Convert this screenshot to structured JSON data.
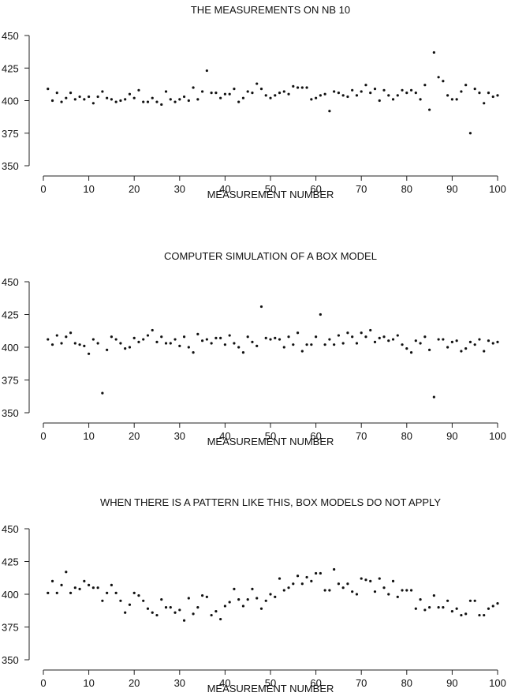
{
  "chart_data": [
    {
      "type": "scatter",
      "title": "THE MEASUREMENTS ON NB 10",
      "xlabel": "MEASUREMENT NUMBER",
      "ylabel": "",
      "xlim": [
        0,
        100
      ],
      "ylim": [
        350,
        450
      ],
      "xticks": [
        0,
        10,
        20,
        30,
        40,
        50,
        60,
        70,
        80,
        90,
        100
      ],
      "yticks": [
        350,
        375,
        400,
        425,
        450
      ],
      "grid": false,
      "x": [
        1,
        2,
        3,
        4,
        5,
        6,
        7,
        8,
        9,
        10,
        11,
        12,
        13,
        14,
        15,
        16,
        17,
        18,
        19,
        20,
        21,
        22,
        23,
        24,
        25,
        26,
        27,
        28,
        29,
        30,
        31,
        32,
        33,
        34,
        35,
        36,
        37,
        38,
        39,
        40,
        41,
        42,
        43,
        44,
        45,
        46,
        47,
        48,
        49,
        50,
        51,
        52,
        53,
        54,
        55,
        56,
        57,
        58,
        59,
        60,
        61,
        62,
        63,
        64,
        65,
        66,
        67,
        68,
        69,
        70,
        71,
        72,
        73,
        74,
        75,
        76,
        77,
        78,
        79,
        80,
        81,
        82,
        83,
        84,
        85,
        86,
        87,
        88,
        89,
        90,
        91,
        92,
        93,
        94,
        95,
        96,
        97,
        98,
        99,
        100
      ],
      "y": [
        409,
        400,
        406,
        399,
        402,
        406,
        401,
        403,
        401,
        403,
        398,
        403,
        407,
        402,
        401,
        399,
        400,
        401,
        405,
        402,
        408,
        399,
        399,
        402,
        399,
        397,
        407,
        401,
        399,
        401,
        403,
        400,
        410,
        401,
        407,
        423,
        406,
        406,
        402,
        405,
        405,
        409,
        399,
        402,
        407,
        406,
        413,
        409,
        404,
        402,
        404,
        406,
        407,
        405,
        411,
        410,
        410,
        410,
        401,
        402,
        404,
        405,
        392,
        407,
        406,
        404,
        403,
        408,
        404,
        407,
        412,
        406,
        409,
        400,
        408,
        404,
        401,
        404,
        408,
        406,
        408,
        406,
        401,
        412,
        393,
        437,
        418,
        415,
        404,
        401,
        401,
        407,
        412,
        375,
        409,
        406,
        398,
        406,
        403,
        404
      ]
    },
    {
      "type": "scatter",
      "title": "COMPUTER SIMULATION OF A BOX MODEL",
      "xlabel": "MEASUREMENT NUMBER",
      "ylabel": "",
      "xlim": [
        0,
        100
      ],
      "ylim": [
        350,
        450
      ],
      "xticks": [
        0,
        10,
        20,
        30,
        40,
        50,
        60,
        70,
        80,
        90,
        100
      ],
      "yticks": [
        350,
        375,
        400,
        425,
        450
      ],
      "grid": false,
      "x": [
        1,
        2,
        3,
        4,
        5,
        6,
        7,
        8,
        9,
        10,
        11,
        12,
        13,
        14,
        15,
        16,
        17,
        18,
        19,
        20,
        21,
        22,
        23,
        24,
        25,
        26,
        27,
        28,
        29,
        30,
        31,
        32,
        33,
        34,
        35,
        36,
        37,
        38,
        39,
        40,
        41,
        42,
        43,
        44,
        45,
        46,
        47,
        48,
        49,
        50,
        51,
        52,
        53,
        54,
        55,
        56,
        57,
        58,
        59,
        60,
        61,
        62,
        63,
        64,
        65,
        66,
        67,
        68,
        69,
        70,
        71,
        72,
        73,
        74,
        75,
        76,
        77,
        78,
        79,
        80,
        81,
        82,
        83,
        84,
        85,
        86,
        87,
        88,
        89,
        90,
        91,
        92,
        93,
        94,
        95,
        96,
        97,
        98,
        99,
        100
      ],
      "y": [
        406,
        402,
        409,
        403,
        408,
        411,
        403,
        402,
        401,
        395,
        406,
        403,
        365,
        398,
        408,
        406,
        403,
        399,
        400,
        407,
        404,
        406,
        409,
        413,
        404,
        408,
        403,
        403,
        406,
        401,
        408,
        400,
        396,
        410,
        405,
        406,
        403,
        407,
        407,
        402,
        409,
        403,
        400,
        396,
        408,
        404,
        401,
        431,
        407,
        406,
        407,
        406,
        400,
        408,
        402,
        411,
        397,
        402,
        402,
        408,
        425,
        402,
        406,
        402,
        409,
        403,
        411,
        408,
        403,
        411,
        408,
        413,
        404,
        407,
        408,
        405,
        406,
        409,
        402,
        399,
        396,
        405,
        403,
        408,
        398,
        362,
        406,
        406,
        400,
        404,
        405,
        397,
        399,
        404,
        402,
        406,
        397,
        405,
        403,
        404
      ]
    },
    {
      "type": "scatter",
      "title": "WHEN THERE IS A PATTERN LIKE THIS, BOX MODELS DO NOT APPLY",
      "xlabel": "MEASUREMENT NUMBER",
      "ylabel": "",
      "xlim": [
        0,
        100
      ],
      "ylim": [
        350,
        450
      ],
      "xticks": [
        0,
        10,
        20,
        30,
        40,
        50,
        60,
        70,
        80,
        90,
        100
      ],
      "yticks": [
        350,
        375,
        400,
        425,
        450
      ],
      "grid": false,
      "x": [
        1,
        2,
        3,
        4,
        5,
        6,
        7,
        8,
        9,
        10,
        11,
        12,
        13,
        14,
        15,
        16,
        17,
        18,
        19,
        20,
        21,
        22,
        23,
        24,
        25,
        26,
        27,
        28,
        29,
        30,
        31,
        32,
        33,
        34,
        35,
        36,
        37,
        38,
        39,
        40,
        41,
        42,
        43,
        44,
        45,
        46,
        47,
        48,
        49,
        50,
        51,
        52,
        53,
        54,
        55,
        56,
        57,
        58,
        59,
        60,
        61,
        62,
        63,
        64,
        65,
        66,
        67,
        68,
        69,
        70,
        71,
        72,
        73,
        74,
        75,
        76,
        77,
        78,
        79,
        80,
        81,
        82,
        83,
        84,
        85,
        86,
        87,
        88,
        89,
        90,
        91,
        92,
        93,
        94,
        95,
        96,
        97,
        98,
        99,
        100
      ],
      "y": [
        401,
        410,
        401,
        407,
        417,
        401,
        405,
        404,
        410,
        407,
        405,
        405,
        395,
        401,
        407,
        401,
        395,
        386,
        392,
        401,
        399,
        395,
        389,
        386,
        384,
        396,
        390,
        390,
        386,
        388,
        380,
        397,
        385,
        390,
        399,
        398,
        384,
        387,
        381,
        391,
        394,
        404,
        396,
        391,
        396,
        404,
        397,
        389,
        395,
        400,
        398,
        412,
        403,
        405,
        408,
        414,
        408,
        413,
        410,
        416,
        416,
        403,
        403,
        419,
        408,
        405,
        408,
        402,
        400,
        412,
        411,
        410,
        402,
        412,
        405,
        400,
        410,
        398,
        403,
        403,
        403,
        389,
        396,
        388,
        390,
        399,
        390,
        390,
        395,
        387,
        389,
        384,
        385,
        395,
        395,
        384,
        384,
        389,
        391,
        393
      ]
    }
  ]
}
